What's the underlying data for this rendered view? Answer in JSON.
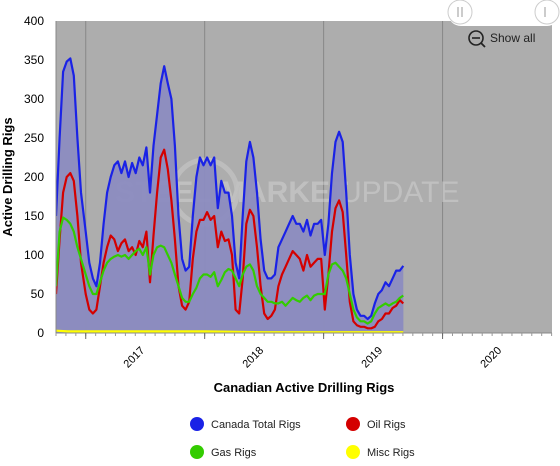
{
  "chart_data": {
    "type": "area",
    "title": "Canadian Active Drilling Rigs",
    "ylabel": "Active Drilling Rigs",
    "xlabel": "",
    "ylim": [
      0,
      400
    ],
    "yticks": [
      0,
      50,
      100,
      150,
      200,
      250,
      300,
      350,
      400
    ],
    "xlim": [
      2016.75,
      2020.92
    ],
    "year_ticks": [
      "2017",
      "2018",
      "2019",
      "2020"
    ],
    "year_boundaries": [
      2017,
      2018,
      2019,
      2020
    ],
    "grid": "vertical year lines",
    "legend_placement": "bottom",
    "watermark": "STEEL MARKET UPDATE",
    "colors": {
      "canada_total": "#1a22e6",
      "oil": "#d40000",
      "gas": "#33cc00",
      "misc": "#ffff00",
      "area_fill": "#8c8cc0",
      "plot_bg": "#adadad"
    },
    "series": [
      {
        "name": "Canada Total Rigs",
        "key": "canada_total",
        "points": [
          [
            2016.75,
            150
          ],
          [
            2016.78,
            250
          ],
          [
            2016.81,
            335
          ],
          [
            2016.84,
            348
          ],
          [
            2016.87,
            352
          ],
          [
            2016.9,
            330
          ],
          [
            2016.93,
            250
          ],
          [
            2016.96,
            180
          ],
          [
            2017.0,
            130
          ],
          [
            2017.03,
            90
          ],
          [
            2017.06,
            70
          ],
          [
            2017.09,
            60
          ],
          [
            2017.12,
            90
          ],
          [
            2017.15,
            140
          ],
          [
            2017.18,
            180
          ],
          [
            2017.21,
            200
          ],
          [
            2017.24,
            215
          ],
          [
            2017.27,
            220
          ],
          [
            2017.3,
            205
          ],
          [
            2017.33,
            220
          ],
          [
            2017.36,
            200
          ],
          [
            2017.39,
            218
          ],
          [
            2017.42,
            205
          ],
          [
            2017.45,
            225
          ],
          [
            2017.48,
            215
          ],
          [
            2017.51,
            238
          ],
          [
            2017.54,
            180
          ],
          [
            2017.57,
            240
          ],
          [
            2017.6,
            280
          ],
          [
            2017.63,
            320
          ],
          [
            2017.66,
            342
          ],
          [
            2017.69,
            320
          ],
          [
            2017.72,
            300
          ],
          [
            2017.75,
            240
          ],
          [
            2017.78,
            150
          ],
          [
            2017.81,
            95
          ],
          [
            2017.84,
            80
          ],
          [
            2017.87,
            85
          ],
          [
            2017.9,
            150
          ],
          [
            2017.93,
            200
          ],
          [
            2017.96,
            225
          ],
          [
            2017.99,
            215
          ],
          [
            2018.02,
            225
          ],
          [
            2018.05,
            215
          ],
          [
            2018.08,
            225
          ],
          [
            2018.11,
            160
          ],
          [
            2018.14,
            195
          ],
          [
            2018.17,
            180
          ],
          [
            2018.2,
            180
          ],
          [
            2018.23,
            150
          ],
          [
            2018.26,
            90
          ],
          [
            2018.29,
            70
          ],
          [
            2018.32,
            150
          ],
          [
            2018.35,
            220
          ],
          [
            2018.38,
            245
          ],
          [
            2018.41,
            225
          ],
          [
            2018.44,
            180
          ],
          [
            2018.47,
            120
          ],
          [
            2018.5,
            80
          ],
          [
            2018.53,
            70
          ],
          [
            2018.56,
            70
          ],
          [
            2018.59,
            75
          ],
          [
            2018.62,
            110
          ],
          [
            2018.65,
            120
          ],
          [
            2018.68,
            130
          ],
          [
            2018.71,
            140
          ],
          [
            2018.74,
            150
          ],
          [
            2018.77,
            140
          ],
          [
            2018.8,
            140
          ],
          [
            2018.83,
            130
          ],
          [
            2018.86,
            145
          ],
          [
            2018.89,
            125
          ],
          [
            2018.92,
            140
          ],
          [
            2018.95,
            140
          ],
          [
            2018.98,
            145
          ],
          [
            2019.01,
            100
          ],
          [
            2019.04,
            140
          ],
          [
            2019.07,
            205
          ],
          [
            2019.1,
            245
          ],
          [
            2019.13,
            258
          ],
          [
            2019.16,
            245
          ],
          [
            2019.19,
            180
          ],
          [
            2019.22,
            100
          ],
          [
            2019.25,
            50
          ],
          [
            2019.28,
            30
          ],
          [
            2019.31,
            22
          ],
          [
            2019.34,
            22
          ],
          [
            2019.37,
            18
          ],
          [
            2019.4,
            22
          ],
          [
            2019.43,
            38
          ],
          [
            2019.46,
            50
          ],
          [
            2019.49,
            55
          ],
          [
            2019.52,
            65
          ],
          [
            2019.55,
            60
          ],
          [
            2019.58,
            70
          ],
          [
            2019.61,
            80
          ],
          [
            2019.64,
            80
          ],
          [
            2019.67,
            86
          ]
        ]
      },
      {
        "name": "Oil Rigs",
        "key": "oil",
        "points": [
          [
            2016.75,
            50
          ],
          [
            2016.78,
            120
          ],
          [
            2016.81,
            180
          ],
          [
            2016.84,
            200
          ],
          [
            2016.87,
            205
          ],
          [
            2016.9,
            195
          ],
          [
            2016.93,
            150
          ],
          [
            2016.96,
            90
          ],
          [
            2017.0,
            50
          ],
          [
            2017.03,
            30
          ],
          [
            2017.06,
            25
          ],
          [
            2017.09,
            30
          ],
          [
            2017.12,
            60
          ],
          [
            2017.15,
            90
          ],
          [
            2017.18,
            110
          ],
          [
            2017.21,
            125
          ],
          [
            2017.24,
            120
          ],
          [
            2017.27,
            105
          ],
          [
            2017.3,
            115
          ],
          [
            2017.33,
            120
          ],
          [
            2017.36,
            105
          ],
          [
            2017.39,
            110
          ],
          [
            2017.42,
            100
          ],
          [
            2017.45,
            118
          ],
          [
            2017.48,
            110
          ],
          [
            2017.51,
            130
          ],
          [
            2017.54,
            65
          ],
          [
            2017.57,
            125
          ],
          [
            2017.6,
            180
          ],
          [
            2017.63,
            225
          ],
          [
            2017.66,
            235
          ],
          [
            2017.69,
            210
          ],
          [
            2017.72,
            170
          ],
          [
            2017.75,
            120
          ],
          [
            2017.78,
            60
          ],
          [
            2017.81,
            35
          ],
          [
            2017.84,
            30
          ],
          [
            2017.87,
            40
          ],
          [
            2017.9,
            95
          ],
          [
            2017.93,
            130
          ],
          [
            2017.96,
            145
          ],
          [
            2017.99,
            145
          ],
          [
            2018.02,
            155
          ],
          [
            2018.05,
            145
          ],
          [
            2018.08,
            150
          ],
          [
            2018.11,
            110
          ],
          [
            2018.14,
            130
          ],
          [
            2018.17,
            118
          ],
          [
            2018.2,
            120
          ],
          [
            2018.23,
            100
          ],
          [
            2018.26,
            30
          ],
          [
            2018.29,
            25
          ],
          [
            2018.32,
            70
          ],
          [
            2018.35,
            140
          ],
          [
            2018.38,
            158
          ],
          [
            2018.41,
            150
          ],
          [
            2018.44,
            110
          ],
          [
            2018.47,
            60
          ],
          [
            2018.5,
            25
          ],
          [
            2018.53,
            18
          ],
          [
            2018.56,
            22
          ],
          [
            2018.59,
            30
          ],
          [
            2018.62,
            60
          ],
          [
            2018.65,
            75
          ],
          [
            2018.68,
            85
          ],
          [
            2018.71,
            95
          ],
          [
            2018.74,
            105
          ],
          [
            2018.77,
            100
          ],
          [
            2018.8,
            95
          ],
          [
            2018.83,
            80
          ],
          [
            2018.86,
            100
          ],
          [
            2018.89,
            85
          ],
          [
            2018.92,
            90
          ],
          [
            2018.95,
            95
          ],
          [
            2018.98,
            95
          ],
          [
            2019.01,
            30
          ],
          [
            2019.04,
            75
          ],
          [
            2019.07,
            130
          ],
          [
            2019.1,
            160
          ],
          [
            2019.13,
            170
          ],
          [
            2019.16,
            155
          ],
          [
            2019.19,
            100
          ],
          [
            2019.22,
            40
          ],
          [
            2019.25,
            15
          ],
          [
            2019.28,
            10
          ],
          [
            2019.31,
            8
          ],
          [
            2019.34,
            8
          ],
          [
            2019.37,
            6
          ],
          [
            2019.4,
            6
          ],
          [
            2019.43,
            8
          ],
          [
            2019.46,
            15
          ],
          [
            2019.49,
            18
          ],
          [
            2019.52,
            25
          ],
          [
            2019.55,
            25
          ],
          [
            2019.58,
            32
          ],
          [
            2019.61,
            35
          ],
          [
            2019.64,
            42
          ],
          [
            2019.67,
            38
          ]
        ]
      },
      {
        "name": "Gas Rigs",
        "key": "gas",
        "points": [
          [
            2016.75,
            60
          ],
          [
            2016.78,
            130
          ],
          [
            2016.81,
            148
          ],
          [
            2016.84,
            145
          ],
          [
            2016.87,
            140
          ],
          [
            2016.9,
            130
          ],
          [
            2016.93,
            110
          ],
          [
            2016.96,
            95
          ],
          [
            2017.0,
            75
          ],
          [
            2017.03,
            60
          ],
          [
            2017.06,
            50
          ],
          [
            2017.09,
            50
          ],
          [
            2017.12,
            65
          ],
          [
            2017.15,
            80
          ],
          [
            2017.18,
            90
          ],
          [
            2017.21,
            95
          ],
          [
            2017.24,
            98
          ],
          [
            2017.27,
            100
          ],
          [
            2017.3,
            98
          ],
          [
            2017.33,
            100
          ],
          [
            2017.36,
            95
          ],
          [
            2017.39,
            100
          ],
          [
            2017.42,
            105
          ],
          [
            2017.45,
            108
          ],
          [
            2017.48,
            100
          ],
          [
            2017.51,
            110
          ],
          [
            2017.54,
            75
          ],
          [
            2017.57,
            100
          ],
          [
            2017.6,
            110
          ],
          [
            2017.63,
            112
          ],
          [
            2017.66,
            110
          ],
          [
            2017.69,
            100
          ],
          [
            2017.72,
            90
          ],
          [
            2017.75,
            75
          ],
          [
            2017.78,
            60
          ],
          [
            2017.81,
            45
          ],
          [
            2017.84,
            40
          ],
          [
            2017.87,
            40
          ],
          [
            2017.9,
            50
          ],
          [
            2017.93,
            58
          ],
          [
            2017.96,
            70
          ],
          [
            2017.99,
            75
          ],
          [
            2018.02,
            75
          ],
          [
            2018.05,
            72
          ],
          [
            2018.08,
            78
          ],
          [
            2018.11,
            60
          ],
          [
            2018.14,
            68
          ],
          [
            2018.17,
            78
          ],
          [
            2018.2,
            82
          ],
          [
            2018.23,
            80
          ],
          [
            2018.26,
            70
          ],
          [
            2018.29,
            60
          ],
          [
            2018.32,
            75
          ],
          [
            2018.35,
            85
          ],
          [
            2018.38,
            88
          ],
          [
            2018.41,
            80
          ],
          [
            2018.44,
            60
          ],
          [
            2018.47,
            50
          ],
          [
            2018.5,
            45
          ],
          [
            2018.53,
            40
          ],
          [
            2018.56,
            40
          ],
          [
            2018.59,
            38
          ],
          [
            2018.62,
            38
          ],
          [
            2018.65,
            40
          ],
          [
            2018.68,
            35
          ],
          [
            2018.71,
            40
          ],
          [
            2018.74,
            45
          ],
          [
            2018.77,
            42
          ],
          [
            2018.8,
            40
          ],
          [
            2018.83,
            45
          ],
          [
            2018.86,
            48
          ],
          [
            2018.89,
            42
          ],
          [
            2018.92,
            48
          ],
          [
            2018.95,
            50
          ],
          [
            2018.98,
            50
          ],
          [
            2019.01,
            50
          ],
          [
            2019.04,
            75
          ],
          [
            2019.07,
            88
          ],
          [
            2019.1,
            90
          ],
          [
            2019.13,
            85
          ],
          [
            2019.16,
            80
          ],
          [
            2019.19,
            70
          ],
          [
            2019.22,
            50
          ],
          [
            2019.25,
            30
          ],
          [
            2019.28,
            20
          ],
          [
            2019.31,
            15
          ],
          [
            2019.34,
            15
          ],
          [
            2019.37,
            12
          ],
          [
            2019.4,
            15
          ],
          [
            2019.43,
            25
          ],
          [
            2019.46,
            32
          ],
          [
            2019.49,
            35
          ],
          [
            2019.52,
            38
          ],
          [
            2019.55,
            35
          ],
          [
            2019.58,
            38
          ],
          [
            2019.61,
            40
          ],
          [
            2019.64,
            45
          ],
          [
            2019.67,
            48
          ]
        ]
      },
      {
        "name": "Misc Rigs",
        "key": "misc",
        "points": [
          [
            2016.75,
            3
          ],
          [
            2016.85,
            2
          ],
          [
            2017.0,
            2
          ],
          [
            2017.5,
            2
          ],
          [
            2018.0,
            2
          ],
          [
            2018.5,
            1
          ],
          [
            2019.0,
            1
          ],
          [
            2019.67,
            1
          ]
        ]
      }
    ]
  },
  "zoom": {
    "show_all_label": "Show all"
  },
  "x_axis_title": "Canadian Active Drilling Rigs"
}
